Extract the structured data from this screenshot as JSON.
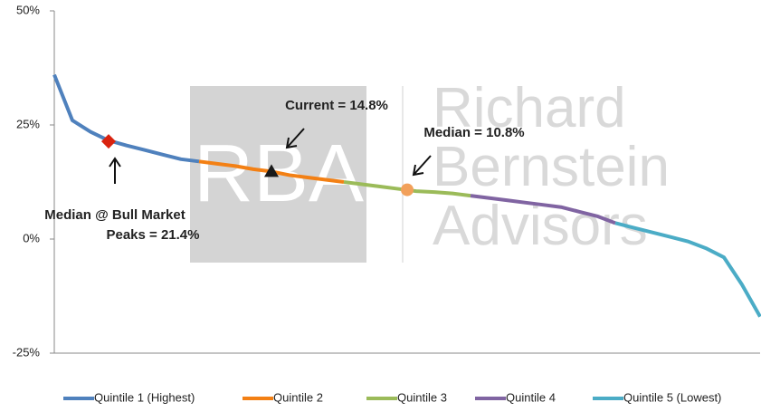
{
  "chart_data": {
    "type": "line",
    "x": [
      0,
      1,
      2,
      3,
      4,
      5,
      6,
      7,
      8,
      9,
      10,
      11,
      12,
      13,
      14,
      15,
      16,
      17,
      18,
      19,
      20,
      21,
      22,
      23,
      24,
      25,
      26,
      27,
      28,
      29,
      30,
      31,
      32,
      33,
      34,
      35,
      36,
      37,
      38,
      39
    ],
    "xlim": [
      0,
      39
    ],
    "ylim": [
      -25,
      50
    ],
    "yticks": [
      {
        "value": -25,
        "label": "-25%"
      },
      {
        "value": 0,
        "label": "0%"
      },
      {
        "value": 25,
        "label": "25%"
      },
      {
        "value": 50,
        "label": "50%"
      }
    ],
    "grid": false,
    "legend": "bottom",
    "series": [
      {
        "name": "Quintile 1 (Highest)",
        "color": "#4f81bd",
        "values": [
          36,
          26,
          23.5,
          21.6,
          20.5,
          19.5,
          18.5,
          17.5,
          17,
          null,
          null,
          null,
          null,
          null,
          null,
          null,
          null,
          null,
          null,
          null,
          null,
          null,
          null,
          null,
          null,
          null,
          null,
          null,
          null,
          null,
          null,
          null,
          null,
          null,
          null,
          null,
          null,
          null,
          null,
          null
        ]
      },
      {
        "name": "Quintile 2",
        "color": "#f38014",
        "values": [
          null,
          null,
          null,
          null,
          null,
          null,
          null,
          null,
          17,
          16.5,
          16,
          15.3,
          14.8,
          14,
          13.5,
          13,
          12.5,
          null,
          null,
          null,
          null,
          null,
          null,
          null,
          null,
          null,
          null,
          null,
          null,
          null,
          null,
          null,
          null,
          null,
          null,
          null,
          null,
          null,
          null,
          null
        ]
      },
      {
        "name": "Quintile 3",
        "color": "#9bbb59",
        "values": [
          null,
          null,
          null,
          null,
          null,
          null,
          null,
          null,
          null,
          null,
          null,
          null,
          null,
          null,
          null,
          null,
          12.5,
          12,
          11.5,
          11,
          10.5,
          10.3,
          10,
          9.5,
          null,
          null,
          null,
          null,
          null,
          null,
          null,
          null,
          null,
          null,
          null,
          null,
          null,
          null,
          null,
          null
        ]
      },
      {
        "name": "Quintile 4",
        "color": "#8064a2",
        "values": [
          null,
          null,
          null,
          null,
          null,
          null,
          null,
          null,
          null,
          null,
          null,
          null,
          null,
          null,
          null,
          null,
          null,
          null,
          null,
          null,
          null,
          null,
          null,
          9.5,
          9,
          8.5,
          8,
          7.5,
          7,
          6,
          5,
          3.5,
          null,
          null,
          null,
          null,
          null,
          null,
          null,
          null
        ]
      },
      {
        "name": "Quintile 5 (Lowest)",
        "color": "#4bacc6",
        "values": [
          null,
          null,
          null,
          null,
          null,
          null,
          null,
          null,
          null,
          null,
          null,
          null,
          null,
          null,
          null,
          null,
          null,
          null,
          null,
          null,
          null,
          null,
          null,
          null,
          null,
          null,
          null,
          null,
          null,
          null,
          null,
          3.5,
          2.5,
          1.5,
          0.5,
          -0.5,
          -2,
          -4,
          -10,
          -17
        ]
      }
    ],
    "annotations": [
      {
        "lines": [
          "Median @ Bull Market",
          "Peaks = 21.4%"
        ],
        "x": 3,
        "y": 21.4,
        "marker": "diamond",
        "color": "#d9230f"
      },
      {
        "lines": [
          "Current = 14.8%"
        ],
        "x": 12,
        "y": 14.8,
        "marker": "triangle",
        "color": "#1a1a1a"
      },
      {
        "lines": [
          "Median = 10.8%"
        ],
        "x": 19.5,
        "y": 10.8,
        "marker": "circle",
        "color": "#f2a05a"
      }
    ],
    "watermark": [
      "RBA",
      "Richard",
      "Bernstein",
      "Advisors"
    ]
  }
}
